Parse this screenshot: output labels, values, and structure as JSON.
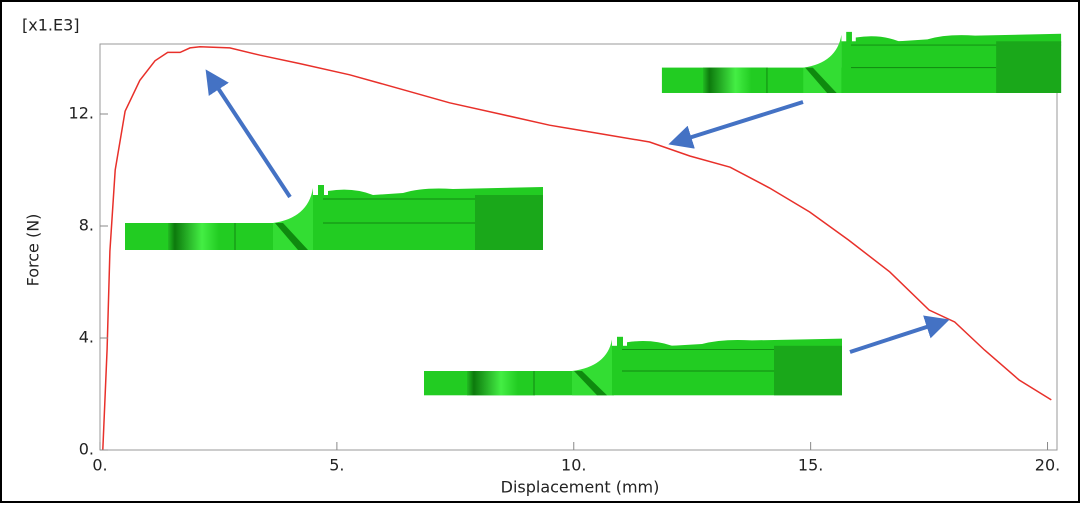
{
  "chart_data": {
    "type": "line",
    "multiplier_label": "[x1.E3]",
    "x_label": "Displacement (mm)",
    "y_label": "Force (N)",
    "x": [
      0.06,
      0.15,
      0.21,
      0.32,
      0.53,
      0.84,
      1.16,
      1.43,
      1.69,
      1.9,
      2.11,
      2.74,
      3.38,
      4.22,
      5.27,
      6.33,
      7.38,
      8.44,
      9.49,
      10.55,
      11.6,
      12.45,
      13.3,
      14.13,
      14.98,
      15.8,
      16.67,
      17.5,
      18.04,
      18.67,
      19.4,
      20.08
    ],
    "series": [
      {
        "color": "#e8302a",
        "values": [
          0,
          3.6,
          7.1,
          10,
          12.1,
          13.2,
          13.9,
          14.2,
          14.2,
          14.36,
          14.4,
          14.36,
          14.1,
          13.8,
          13.4,
          12.9,
          12.4,
          12.0,
          11.6,
          11.3,
          11.0,
          10.5,
          10.1,
          9.36,
          8.5,
          7.5,
          6.36,
          5.0,
          4.57,
          3.57,
          2.5,
          1.79
        ]
      }
    ],
    "xlim": [
      0,
      20.2
    ],
    "ylim": [
      0,
      14.5
    ],
    "xticks": [
      {
        "value": 0,
        "label": "0."
      },
      {
        "value": 5,
        "label": "5."
      },
      {
        "value": 10,
        "label": "10."
      },
      {
        "value": 15,
        "label": "15."
      },
      {
        "value": 20,
        "label": "20."
      }
    ],
    "yticks": [
      {
        "value": 0,
        "label": "0."
      },
      {
        "value": 4,
        "label": "4."
      },
      {
        "value": 8,
        "label": "8."
      },
      {
        "value": 12,
        "label": "12."
      }
    ]
  }
}
